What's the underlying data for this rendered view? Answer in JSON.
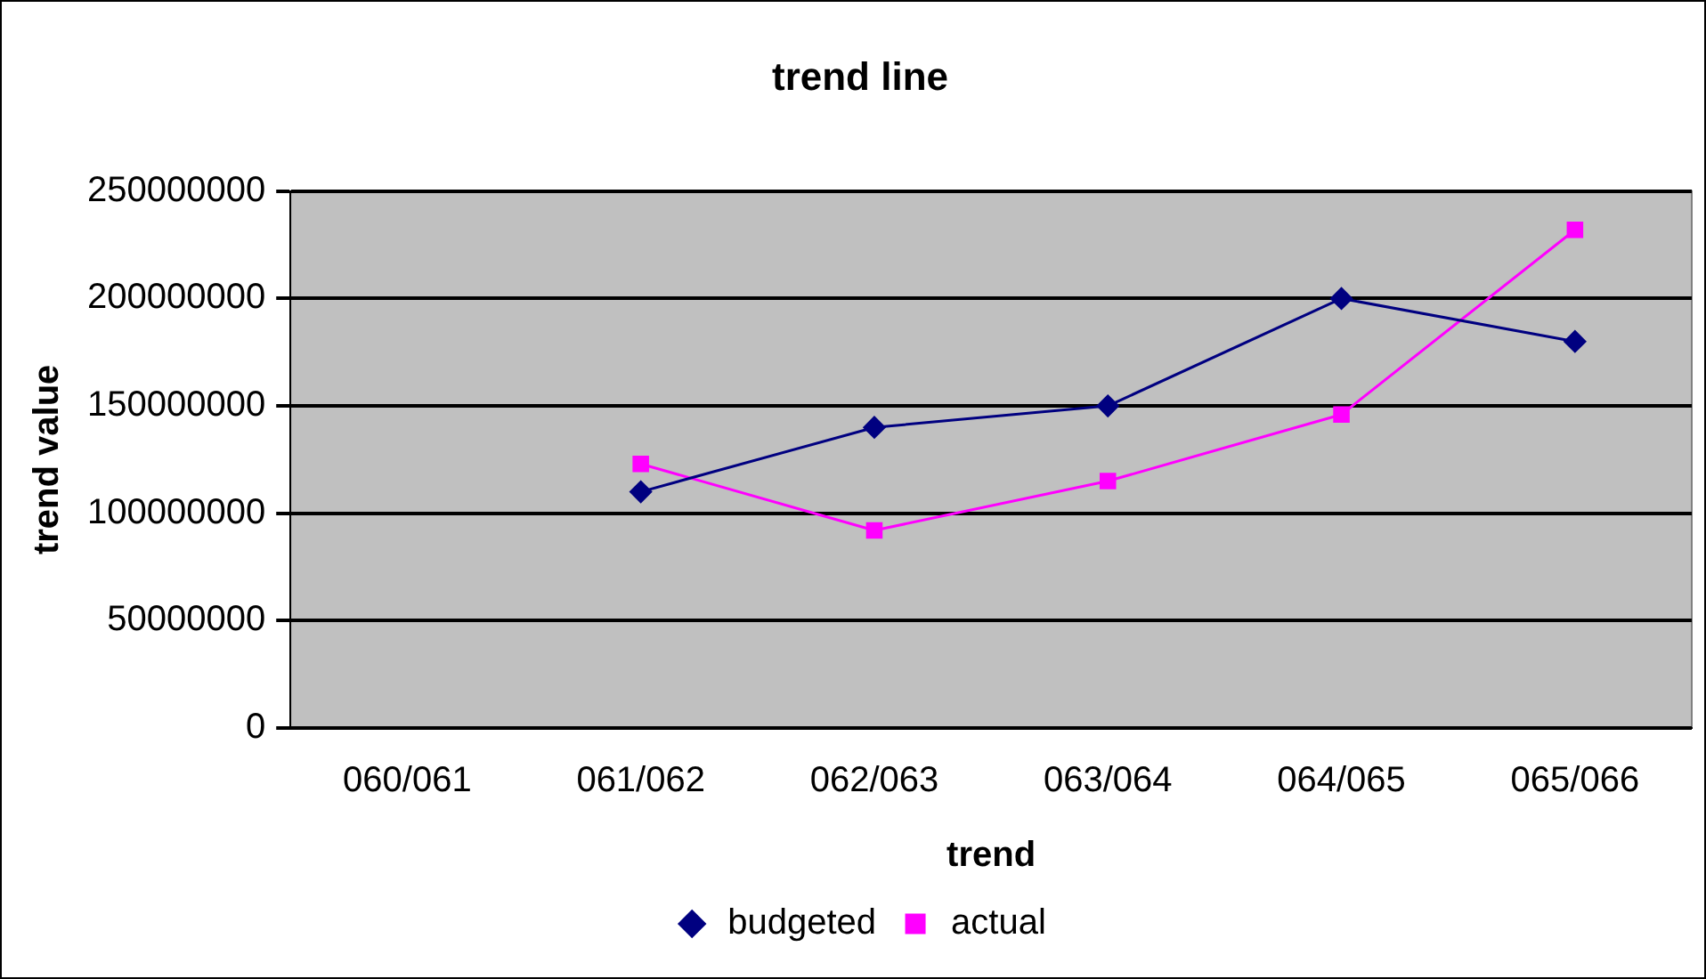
{
  "chart_data": {
    "type": "line",
    "title": "trend line",
    "xlabel": "trend",
    "ylabel": "trend value",
    "categories": [
      "060/061",
      "061/062",
      "062/063",
      "063/064",
      "064/065",
      "065/066"
    ],
    "series": [
      {
        "name": "budgeted",
        "color": "#000080",
        "marker": "diamond",
        "values": [
          null,
          110000000,
          140000000,
          150000000,
          200000000,
          180000000
        ]
      },
      {
        "name": "actual",
        "color": "#ff00ff",
        "marker": "square",
        "values": [
          null,
          123000000,
          92000000,
          115000000,
          146000000,
          232000000
        ]
      }
    ],
    "ylim": [
      0,
      250000000
    ],
    "yticks": [
      0,
      50000000,
      100000000,
      150000000,
      200000000,
      250000000
    ],
    "grid": "y",
    "legend": "bottom",
    "line_style": "solid"
  }
}
